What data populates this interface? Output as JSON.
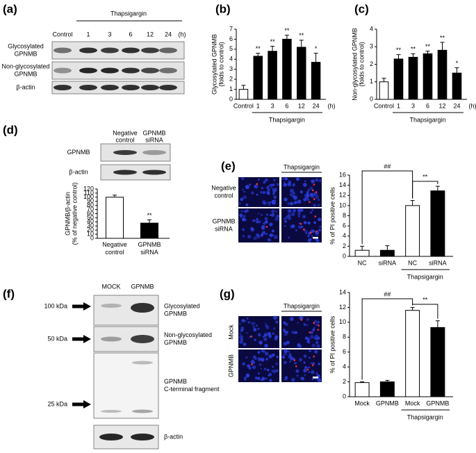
{
  "chart_data": [
    {
      "type": "bar",
      "panel": "(b)",
      "ylabel": [
        "Glycosylated GPNMB",
        "(folds to control)"
      ],
      "categories": [
        "Control",
        "1",
        "3",
        "6",
        "12",
        "24"
      ],
      "unit": "(h)",
      "group_label": "Thapsigargin",
      "values": [
        1.0,
        4.3,
        4.8,
        6.0,
        5.2,
        3.7
      ],
      "errors": [
        0.4,
        0.3,
        0.5,
        0.4,
        0.7,
        0.9
      ],
      "colors": [
        "#ffffff",
        "#000000",
        "#000000",
        "#000000",
        "#000000",
        "#000000"
      ],
      "significance": [
        null,
        "**",
        "**",
        "**",
        "**",
        "*"
      ],
      "ylim": [
        0,
        7
      ],
      "yticks": [
        0,
        1,
        2,
        3,
        4,
        5,
        6,
        7
      ]
    },
    {
      "type": "bar",
      "panel": "(c)",
      "ylabel": [
        "Non-glycosylated GPNMB",
        "(folds to control)"
      ],
      "categories": [
        "Control",
        "1",
        "3",
        "6",
        "12",
        "24"
      ],
      "unit": "(h)",
      "group_label": "Thapsigargin",
      "values": [
        1.0,
        2.3,
        2.4,
        2.6,
        2.8,
        1.5
      ],
      "errors": [
        0.2,
        0.25,
        0.2,
        0.15,
        0.45,
        0.3
      ],
      "colors": [
        "#ffffff",
        "#000000",
        "#000000",
        "#000000",
        "#000000",
        "#000000"
      ],
      "significance": [
        null,
        "**",
        "**",
        "**",
        "**",
        "*"
      ],
      "ylim": [
        0,
        4
      ],
      "yticks": [
        0,
        1,
        2,
        3,
        4
      ]
    },
    {
      "type": "bar",
      "ylabel": [
        "GPNMB/β-actin",
        "(% of negative control)"
      ],
      "categories": [
        [
          "Negative",
          "control"
        ],
        [
          "GPNMB",
          "siRNA"
        ]
      ],
      "values": [
        100,
        37
      ],
      "errors": [
        5,
        8
      ],
      "colors": [
        "#ffffff",
        "#000000"
      ],
      "significance": [
        null,
        "**"
      ],
      "ylim": [
        0,
        120
      ],
      "yticks": [
        0,
        10,
        20,
        30,
        40,
        50,
        60,
        70,
        80,
        90,
        100,
        110,
        120
      ]
    },
    {
      "type": "bar",
      "ylabel": [
        "% of PI positive cells"
      ],
      "categories": [
        "NC",
        "siRNA",
        "NC",
        "siRNA"
      ],
      "group_label": "Thapsigargin",
      "values": [
        1.2,
        1.2,
        10.0,
        12.9
      ],
      "errors": [
        0.8,
        0.9,
        1.0,
        0.9
      ],
      "colors": [
        "#ffffff",
        "#000000",
        "#ffffff",
        "#000000"
      ],
      "brackets": [
        {
          "label": "##"
        },
        {
          "label": "**"
        }
      ],
      "ylim": [
        0,
        16
      ],
      "yticks": [
        0,
        2,
        4,
        6,
        8,
        10,
        12,
        14,
        16
      ]
    },
    {
      "type": "bar",
      "ylabel": [
        "% of PI positive cells"
      ],
      "categories": [
        "Mock",
        "GPNMB",
        "Mock",
        "GPNMB"
      ],
      "group_label": "Thapsigargin",
      "values": [
        1.9,
        2.0,
        11.6,
        9.3
      ],
      "errors": [
        0.1,
        0.2,
        0.4,
        0.9
      ],
      "colors": [
        "#ffffff",
        "#000000",
        "#ffffff",
        "#000000"
      ],
      "brackets": [
        {
          "label": "##"
        },
        {
          "label": "**"
        }
      ],
      "ylim": [
        0,
        14
      ],
      "yticks": [
        0,
        2,
        4,
        6,
        8,
        10,
        12,
        14
      ]
    }
  ],
  "blot_a": {
    "panel": "(a)",
    "treatment": "Thapsigargin",
    "lanes": [
      "Control",
      "1",
      "3",
      "6",
      "12",
      "24"
    ],
    "unit": "(h)",
    "rows": [
      [
        "Glycosylated",
        "GPNMB"
      ],
      [
        "Non-glycosylated",
        "GPNMB"
      ],
      [
        "β-actin"
      ]
    ]
  },
  "blot_d": {
    "panel": "(d)",
    "lanes": [
      [
        "Negative",
        "control"
      ],
      [
        "GPNMB",
        "siRNA"
      ]
    ],
    "rows": [
      "GPNMB",
      "β-actin"
    ]
  },
  "micro_e": {
    "panel": "(e)",
    "treatment": "Thapsigargin",
    "rows": [
      [
        "Negative",
        "control"
      ],
      [
        "GPNMB",
        "siRNA"
      ]
    ]
  },
  "blot_f": {
    "panel": "(f)",
    "lanes": [
      "MOCK",
      "GPNMB"
    ],
    "markers": [
      "100 kDa",
      "50 kDa",
      "25 kDa"
    ],
    "rows": [
      [
        "Glycosylated",
        "GPNMB"
      ],
      [
        "Non-glycosylated",
        "GPNMB"
      ],
      [
        "GPNMB",
        "C-terminal fragment"
      ],
      [
        "β-actin"
      ]
    ]
  },
  "micro_g": {
    "panel": "(g)",
    "treatment": "Thapsigargin",
    "rows": [
      "Mock",
      "GPNMB"
    ]
  }
}
